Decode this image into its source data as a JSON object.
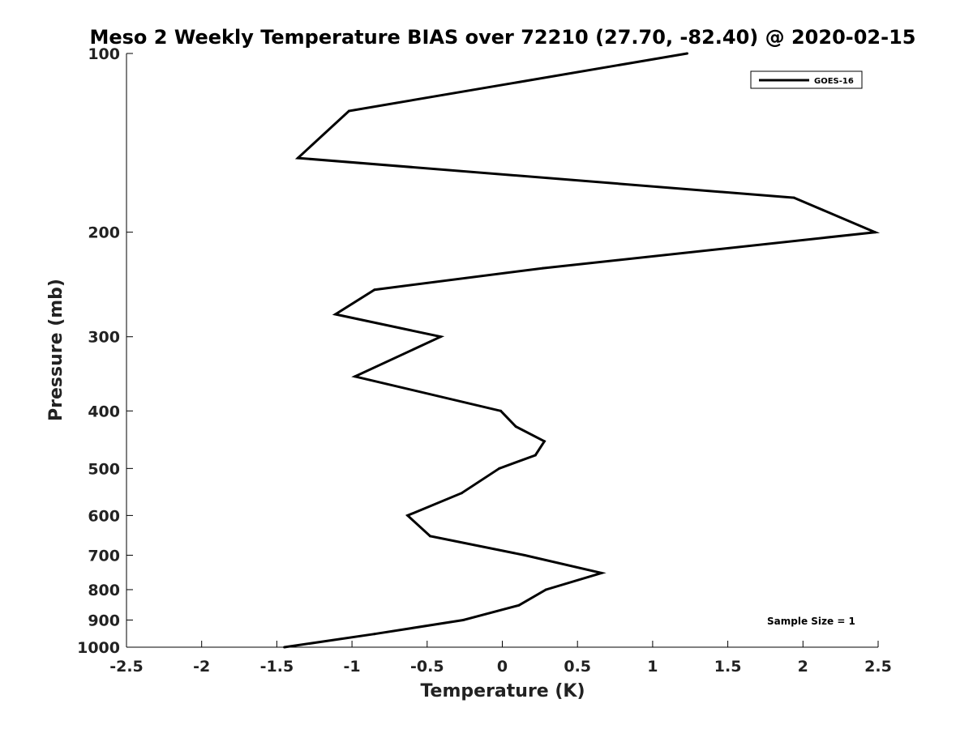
{
  "chart_data": {
    "type": "line",
    "title": "Meso 2 Weekly Temperature BIAS over 72210 (27.70, -82.40) @ 2020-02-15",
    "xlabel": "Temperature (K)",
    "ylabel": "Pressure (mb)",
    "xlim": [
      -2.5,
      2.5
    ],
    "ylim": [
      1000,
      100
    ],
    "y_scale": "log",
    "y_reversed": true,
    "x_ticks": [
      -2.5,
      -2,
      -1.5,
      -1,
      -0.5,
      0,
      0.5,
      1,
      1.5,
      2,
      2.5
    ],
    "x_tick_labels": [
      "-2.5",
      "-2",
      "-1.5",
      "-1",
      "-0.5",
      "0",
      "0.5",
      "1",
      "1.5",
      "2",
      "2.5"
    ],
    "y_ticks": [
      100,
      200,
      300,
      400,
      500,
      600,
      700,
      800,
      900,
      1000
    ],
    "y_tick_labels": [
      "100",
      "200",
      "300",
      "400",
      "500",
      "600",
      "700",
      "800",
      "900",
      "1000"
    ],
    "grid": false,
    "legend_position": "top-right",
    "line_color": "#000000",
    "series": [
      {
        "name": "GOES-16",
        "points": [
          {
            "x": 1.23,
            "y": 100
          },
          {
            "x": -1.02,
            "y": 125
          },
          {
            "x": -1.36,
            "y": 150
          },
          {
            "x": 1.94,
            "y": 175
          },
          {
            "x": 2.48,
            "y": 200
          },
          {
            "x": 0.27,
            "y": 230
          },
          {
            "x": -0.85,
            "y": 250
          },
          {
            "x": -1.11,
            "y": 275
          },
          {
            "x": -0.41,
            "y": 300
          },
          {
            "x": -0.98,
            "y": 350
          },
          {
            "x": -0.01,
            "y": 400
          },
          {
            "x": 0.09,
            "y": 425
          },
          {
            "x": 0.28,
            "y": 450
          },
          {
            "x": 0.22,
            "y": 475
          },
          {
            "x": -0.02,
            "y": 500
          },
          {
            "x": -0.27,
            "y": 550
          },
          {
            "x": -0.63,
            "y": 600
          },
          {
            "x": -0.48,
            "y": 650
          },
          {
            "x": 0.15,
            "y": 700
          },
          {
            "x": 0.66,
            "y": 750
          },
          {
            "x": 0.29,
            "y": 800
          },
          {
            "x": 0.11,
            "y": 850
          },
          {
            "x": -0.26,
            "y": 900
          },
          {
            "x": -0.85,
            "y": 950
          },
          {
            "x": -1.45,
            "y": 1000
          }
        ]
      }
    ],
    "annotations": [
      "Sample Size = 1"
    ]
  }
}
